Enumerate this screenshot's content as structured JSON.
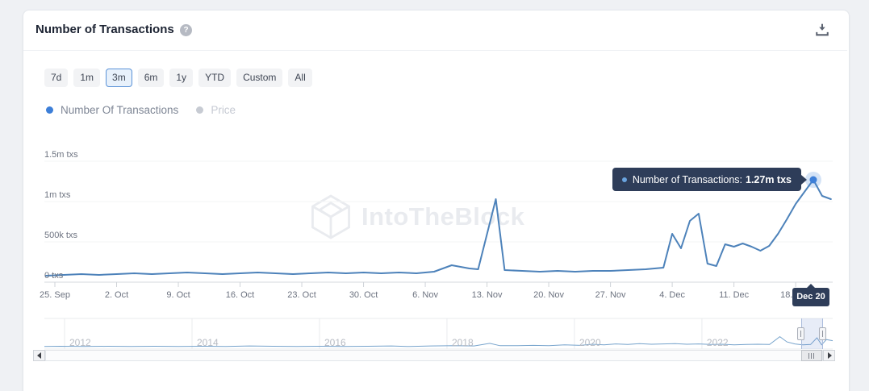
{
  "header": {
    "title": "Number of Transactions",
    "help_icon": "question-mark-circle",
    "download_icon": "download-arrow"
  },
  "ranges": {
    "options": [
      "7d",
      "1m",
      "3m",
      "6m",
      "1y",
      "YTD",
      "Custom",
      "All"
    ],
    "selected": "3m"
  },
  "legend": {
    "items": [
      {
        "label": "Number Of Transactions",
        "color": "#3d7fd8",
        "active": true
      },
      {
        "label": "Price",
        "color": "#c7cbd3",
        "active": false
      }
    ]
  },
  "watermark": {
    "text": "IntoTheBlock",
    "logo": "itb-hexagon-logo"
  },
  "tooltip": {
    "series_label": "Number of Transactions:",
    "value": "1.27m txs",
    "marker_color": "#6aa4df",
    "bg_color": "#2e3d59"
  },
  "x_axis_badge": {
    "label": "Dec 20"
  },
  "colors": {
    "line": "#4d82ba",
    "marker": "#3d7fd8",
    "marker_halo": "rgba(61,127,212,0.22)",
    "navigator_line": "#76a3cc",
    "grid": "#f3f4f6",
    "axis": "#d5d8dd",
    "selected_range_border": "#5b93d8"
  },
  "chart_data": [
    {
      "type": "line",
      "title": "Number of Transactions",
      "y_unit": "million txs",
      "ylim": [
        0,
        1.8
      ],
      "grid": "horizontal",
      "legend_position": "top-left",
      "y_ticks": [
        {
          "label": "0 txs",
          "value": 0
        },
        {
          "label": "500k txs",
          "value": 0.5
        },
        {
          "label": "1m txs",
          "value": 1
        },
        {
          "label": "1.5m txs",
          "value": 1.5
        }
      ],
      "x_ticks": [
        {
          "label": "25. Sep",
          "day": 0
        },
        {
          "label": "2. Oct",
          "day": 7
        },
        {
          "label": "9. Oct",
          "day": 14
        },
        {
          "label": "16. Oct",
          "day": 21
        },
        {
          "label": "23. Oct",
          "day": 28
        },
        {
          "label": "30. Oct",
          "day": 35
        },
        {
          "label": "6. Nov",
          "day": 42
        },
        {
          "label": "13. Nov",
          "day": 49
        },
        {
          "label": "20. Nov",
          "day": 56
        },
        {
          "label": "27. Nov",
          "day": 63
        },
        {
          "label": "4. Dec",
          "day": 70
        },
        {
          "label": "11. Dec",
          "day": 77
        },
        {
          "label": "18. Dec",
          "day": 84
        }
      ],
      "series": [
        {
          "name": "Number Of Transactions",
          "color": "#4d82ba",
          "points": [
            [
              "2022-09-24",
              0.08
            ],
            [
              "2022-09-26",
              0.09
            ],
            [
              "2022-09-28",
              0.1
            ],
            [
              "2022-09-30",
              0.09
            ],
            [
              "2022-10-02",
              0.1
            ],
            [
              "2022-10-04",
              0.11
            ],
            [
              "2022-10-06",
              0.1
            ],
            [
              "2022-10-08",
              0.11
            ],
            [
              "2022-10-10",
              0.12
            ],
            [
              "2022-10-12",
              0.11
            ],
            [
              "2022-10-14",
              0.1
            ],
            [
              "2022-10-16",
              0.11
            ],
            [
              "2022-10-18",
              0.12
            ],
            [
              "2022-10-20",
              0.11
            ],
            [
              "2022-10-22",
              0.1
            ],
            [
              "2022-10-24",
              0.11
            ],
            [
              "2022-10-26",
              0.12
            ],
            [
              "2022-10-28",
              0.11
            ],
            [
              "2022-10-30",
              0.12
            ],
            [
              "2022-11-01",
              0.11
            ],
            [
              "2022-11-03",
              0.12
            ],
            [
              "2022-11-05",
              0.11
            ],
            [
              "2022-11-07",
              0.13
            ],
            [
              "2022-11-09",
              0.21
            ],
            [
              "2022-11-10",
              0.19
            ],
            [
              "2022-11-11",
              0.17
            ],
            [
              "2022-11-12",
              0.16
            ],
            [
              "2022-11-14",
              1.03
            ],
            [
              "2022-11-15",
              0.15
            ],
            [
              "2022-11-17",
              0.14
            ],
            [
              "2022-11-19",
              0.13
            ],
            [
              "2022-11-21",
              0.14
            ],
            [
              "2022-11-23",
              0.13
            ],
            [
              "2022-11-25",
              0.14
            ],
            [
              "2022-11-27",
              0.14
            ],
            [
              "2022-11-29",
              0.15
            ],
            [
              "2022-12-01",
              0.16
            ],
            [
              "2022-12-02",
              0.17
            ],
            [
              "2022-12-03",
              0.18
            ],
            [
              "2022-12-04",
              0.6
            ],
            [
              "2022-12-05",
              0.42
            ],
            [
              "2022-12-06",
              0.76
            ],
            [
              "2022-12-07",
              0.85
            ],
            [
              "2022-12-08",
              0.23
            ],
            [
              "2022-12-09",
              0.2
            ],
            [
              "2022-12-10",
              0.47
            ],
            [
              "2022-12-11",
              0.44
            ],
            [
              "2022-12-12",
              0.48
            ],
            [
              "2022-12-13",
              0.44
            ],
            [
              "2022-12-14",
              0.39
            ],
            [
              "2022-12-15",
              0.45
            ],
            [
              "2022-12-16",
              0.6
            ],
            [
              "2022-12-17",
              0.78
            ],
            [
              "2022-12-18",
              0.97
            ],
            [
              "2022-12-19",
              1.12
            ],
            [
              "2022-12-20",
              1.27
            ],
            [
              "2022-12-21",
              1.07
            ],
            [
              "2022-12-22",
              1.03
            ]
          ]
        }
      ],
      "highlight": {
        "date": "2022-12-20",
        "value": 1.27,
        "label": "1.27m txs",
        "x_badge": "Dec 20"
      }
    },
    {
      "type": "line",
      "role": "navigator-minimap",
      "x_ticks": [
        "2012",
        "2014",
        "2016",
        "2018",
        "2020",
        "2022"
      ],
      "selection": {
        "from_frac": 0.96,
        "to_frac": 0.987
      },
      "points": [
        [
          0,
          0.06
        ],
        [
          0.02,
          0.07
        ],
        [
          0.05,
          0.06
        ],
        [
          0.08,
          0.07
        ],
        [
          0.11,
          0.06
        ],
        [
          0.14,
          0.07
        ],
        [
          0.17,
          0.06
        ],
        [
          0.2,
          0.07
        ],
        [
          0.23,
          0.06
        ],
        [
          0.26,
          0.08
        ],
        [
          0.29,
          0.07
        ],
        [
          0.32,
          0.06
        ],
        [
          0.35,
          0.07
        ],
        [
          0.38,
          0.06
        ],
        [
          0.41,
          0.07
        ],
        [
          0.44,
          0.08
        ],
        [
          0.46,
          0.06
        ],
        [
          0.49,
          0.08
        ],
        [
          0.52,
          0.09
        ],
        [
          0.545,
          0.08
        ],
        [
          0.565,
          0.17
        ],
        [
          0.578,
          0.09
        ],
        [
          0.6,
          0.09
        ],
        [
          0.62,
          0.1
        ],
        [
          0.64,
          0.09
        ],
        [
          0.66,
          0.12
        ],
        [
          0.68,
          0.1
        ],
        [
          0.695,
          0.14
        ],
        [
          0.71,
          0.12
        ],
        [
          0.725,
          0.15
        ],
        [
          0.74,
          0.13
        ],
        [
          0.755,
          0.16
        ],
        [
          0.77,
          0.14
        ],
        [
          0.785,
          0.15
        ],
        [
          0.8,
          0.16
        ],
        [
          0.815,
          0.14
        ],
        [
          0.83,
          0.15
        ],
        [
          0.845,
          0.13
        ],
        [
          0.86,
          0.14
        ],
        [
          0.875,
          0.12
        ],
        [
          0.89,
          0.13
        ],
        [
          0.905,
          0.14
        ],
        [
          0.92,
          0.13
        ],
        [
          0.933,
          0.4
        ],
        [
          0.942,
          0.22
        ],
        [
          0.952,
          0.15
        ],
        [
          0.962,
          0.12
        ],
        [
          0.972,
          0.13
        ],
        [
          0.98,
          0.36
        ],
        [
          0.986,
          0.12
        ],
        [
          0.992,
          0.3
        ],
        [
          1,
          0.26
        ]
      ]
    }
  ]
}
